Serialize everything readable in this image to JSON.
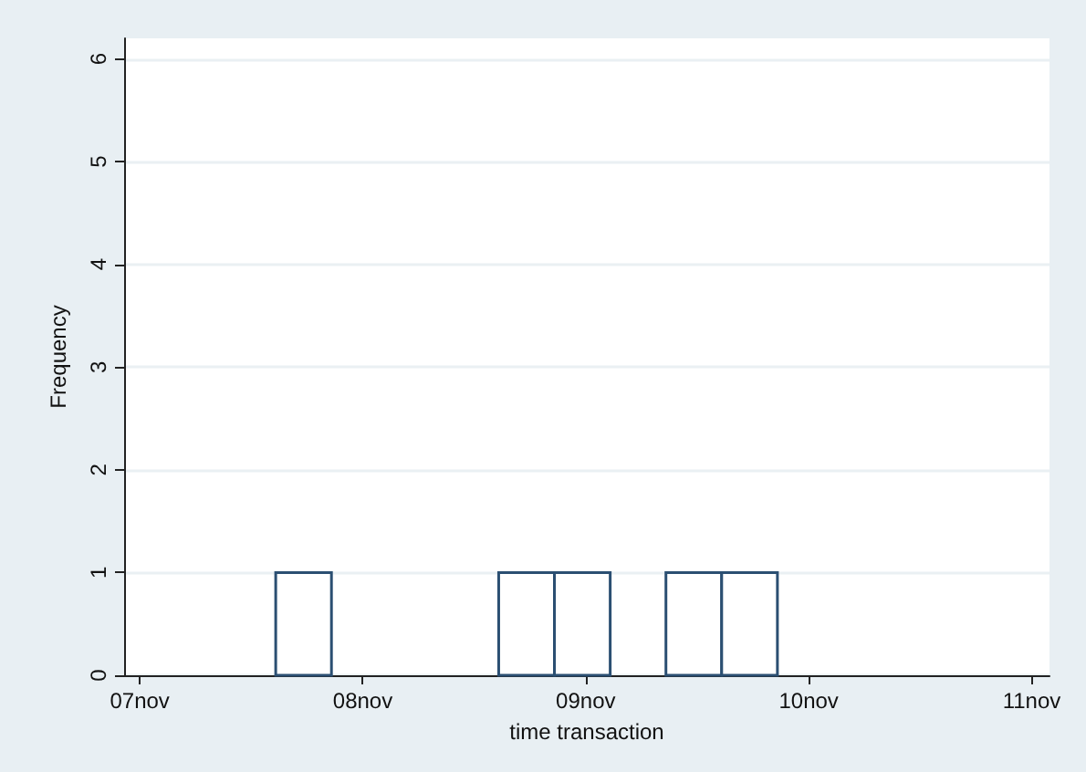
{
  "chart_data": {
    "type": "histogram",
    "xlabel": "time transaction",
    "ylabel": "Frequency",
    "bins": [
      "--11-07T14:38",
      "--11-07T20:38",
      "--11-08T02:38",
      "--11-08T08:38",
      "--11-08T14:38",
      "--11-08T20:38",
      "--11-09T02:38",
      "--11-09T08:38",
      "--11-09T14:38",
      "--11-09T20:38"
    ],
    "values": [
      1,
      0,
      0,
      0,
      1,
      1,
      0,
      1,
      1
    ],
    "color": "#2b4f72",
    "xlim": [
      "--11-06T22:19",
      "--11-11T01:55"
    ],
    "xticks": [
      {
        "value": "--11-07",
        "label": "07nov"
      },
      {
        "value": "--11-08",
        "label": "08nov"
      },
      {
        "value": "--11-09",
        "label": "09nov"
      },
      {
        "value": "--11-10",
        "label": "10nov"
      },
      {
        "value": "--11-11",
        "label": "11nov"
      }
    ],
    "ylim": [
      0,
      6.2
    ],
    "yticks": [
      0,
      1,
      2,
      3,
      4,
      5,
      6
    ],
    "grid": "y"
  }
}
